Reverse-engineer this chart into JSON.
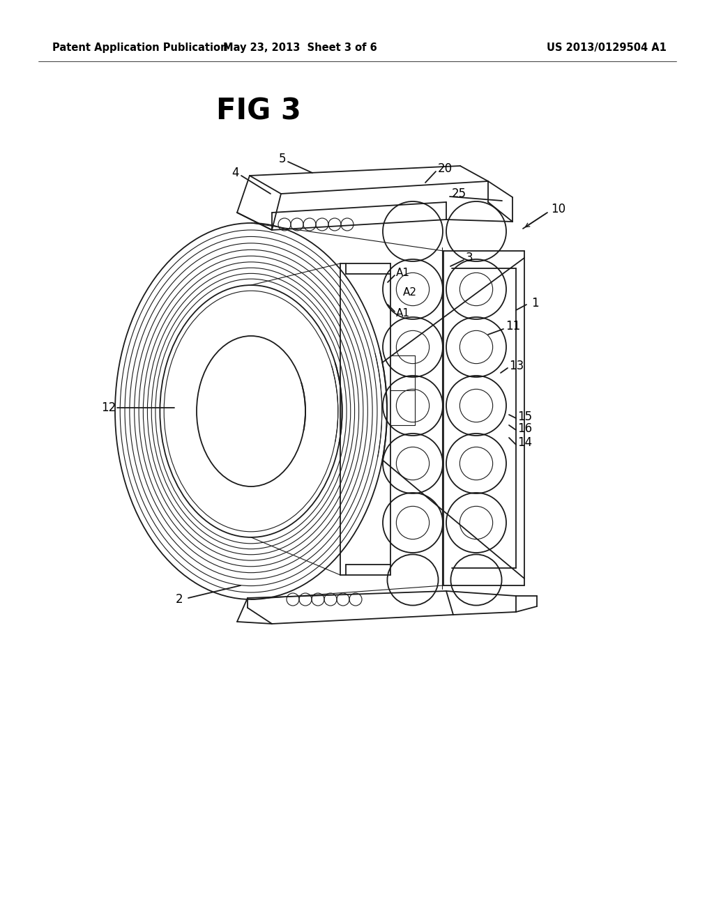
{
  "background_color": "#ffffff",
  "header_left": "Patent Application Publication",
  "header_center": "May 23, 2013  Sheet 3 of 6",
  "header_right": "US 2013/0129504 A1",
  "figure_title": "FIG 3",
  "line_color": "#1a1a1a",
  "text_color": "#000000",
  "header_fontsize": 10.5,
  "title_fontsize": 30,
  "label_fontsize": 12
}
